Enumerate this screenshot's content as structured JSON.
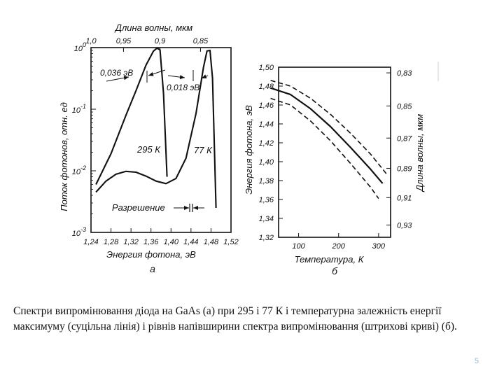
{
  "caption": {
    "text": "Спектри випромінювання діода на GaAs (а) при 295 і 77 К і температурна залежність енергії максимуму (суцільна лінія) і рівнів напівширини спектра випромінювання (штрихові криві) (б)."
  },
  "page_number": "5",
  "chart_data": [
    {
      "type": "line",
      "panel_label": "а",
      "xlabel": "Энергия фотона, эВ",
      "ylabel": "Поток фотонов, отн. ед",
      "top_axis_label": "Длина волны, мкм",
      "xlim": [
        1.24,
        1.52
      ],
      "y_scale": "log",
      "ylim": [
        0.001,
        1
      ],
      "xticks": [
        "1,24",
        "1,28",
        "1,32",
        "1,36",
        "1,40",
        "1,44",
        "1,48",
        "1,52"
      ],
      "top_ticks": [
        {
          "energy": 1.24,
          "label": "1,0"
        },
        {
          "energy": 1.305,
          "label": "0,95"
        },
        {
          "energy": 1.378,
          "label": "0,9"
        },
        {
          "energy": 1.459,
          "label": "0,85"
        }
      ],
      "yticks": [
        {
          "value": 1,
          "label": "10",
          "exp": "0"
        },
        {
          "value": 0.1,
          "label": "10",
          "exp": "-1"
        },
        {
          "value": 0.01,
          "label": "10",
          "exp": "-2"
        },
        {
          "value": 0.001,
          "label": "10",
          "exp": "-3"
        }
      ],
      "series": [
        {
          "name": "295 К",
          "x": [
            1.25,
            1.28,
            1.31,
            1.33,
            1.35,
            1.365,
            1.372,
            1.378,
            1.385,
            1.392
          ],
          "y": [
            0.006,
            0.019,
            0.08,
            0.2,
            0.52,
            0.88,
            0.98,
            0.92,
            0.18,
            0.008
          ]
        },
        {
          "name": "77 К",
          "x": [
            1.25,
            1.27,
            1.29,
            1.31,
            1.33,
            1.35,
            1.37,
            1.39,
            1.41,
            1.43,
            1.45,
            1.465,
            1.472,
            1.478,
            1.483,
            1.49
          ],
          "y": [
            0.0045,
            0.0068,
            0.0088,
            0.0098,
            0.0095,
            0.0082,
            0.0068,
            0.0062,
            0.0075,
            0.016,
            0.085,
            0.48,
            0.88,
            0.9,
            0.32,
            0.0025
          ]
        }
      ],
      "annotations": [
        {
          "text": "0,036 эВ"
        },
        {
          "text": "0,018 эВ"
        },
        {
          "text": "295 К"
        },
        {
          "text": "77 К"
        },
        {
          "text": "Разрешение"
        }
      ]
    },
    {
      "type": "line",
      "panel_label": "б",
      "xlabel": "Температура, К",
      "ylabel": "Энергия фотона, эВ",
      "right_axis_label": "Длина волны, мкм",
      "xlim": [
        50,
        330
      ],
      "ylim": [
        1.32,
        1.5
      ],
      "xticks": [
        "100",
        "200",
        "300"
      ],
      "yticks": [
        "1,50",
        "1,48",
        "1,46",
        "1,44",
        "1,42",
        "1,40",
        "1,38",
        "1,36",
        "1,34",
        "1,32"
      ],
      "right_ticks": [
        {
          "energy": 1.494,
          "label": "0,83"
        },
        {
          "energy": 1.459,
          "label": "0,85"
        },
        {
          "energy": 1.425,
          "label": "0,87"
        },
        {
          "energy": 1.393,
          "label": "0,89"
        },
        {
          "energy": 1.362,
          "label": "0,91"
        },
        {
          "energy": 1.333,
          "label": "0,93"
        }
      ],
      "series": [
        {
          "name": "",
          "style": "solid",
          "x": [
            30,
            80,
            130,
            180,
            230,
            280,
            310
          ],
          "y": [
            1.478,
            1.471,
            1.456,
            1.437,
            1.415,
            1.392,
            1.377
          ]
        },
        {
          "name": "",
          "style": "dashed",
          "x": [
            30,
            80,
            130,
            180,
            230,
            280,
            320
          ],
          "y": [
            1.486,
            1.48,
            1.467,
            1.45,
            1.43,
            1.408,
            1.387
          ]
        },
        {
          "name": "",
          "style": "dashed",
          "x": [
            30,
            80,
            130,
            180,
            230,
            280,
            300
          ],
          "y": [
            1.467,
            1.46,
            1.443,
            1.422,
            1.398,
            1.373,
            1.361
          ]
        }
      ]
    }
  ]
}
